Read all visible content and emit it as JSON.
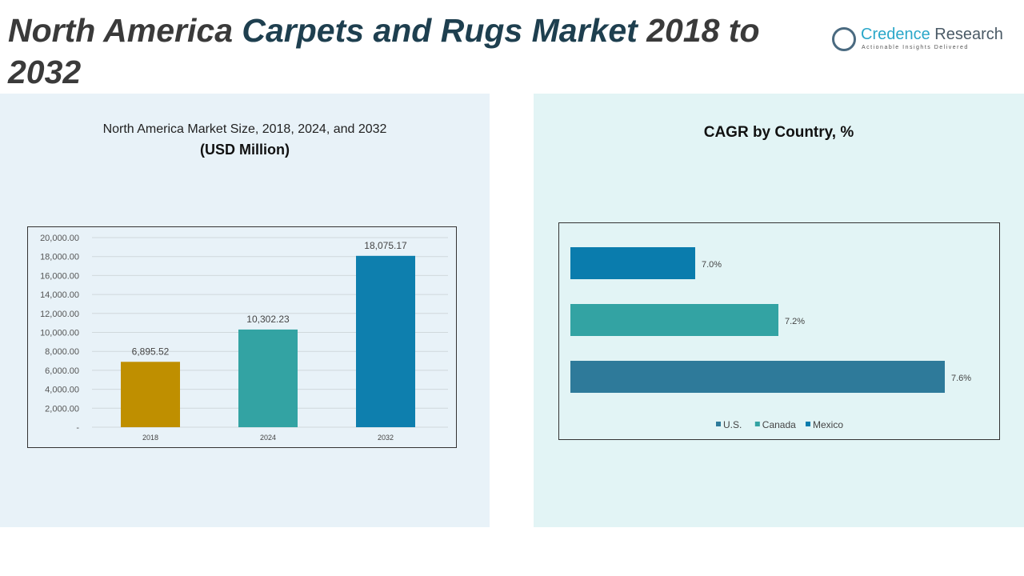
{
  "header": {
    "title_part1": "North America ",
    "title_part2": "Carpets and Rugs Market",
    "title_part3": " 2018 to 2032"
  },
  "logo": {
    "name1": "Credence",
    "name2": " Research",
    "tagline": "Actionable Insights Delivered"
  },
  "left_panel": {
    "title": "North America Market Size, 2018, 2024, and 2032",
    "subtitle": "(USD Million)"
  },
  "right_panel": {
    "title": "CAGR by Country, %"
  },
  "chart_data": [
    {
      "type": "bar",
      "title": "North America Market Size, 2018, 2024, and 2032 (USD Million)",
      "categories": [
        "2018",
        "2024",
        "2032"
      ],
      "values": [
        6895.52,
        10302.23,
        18075.17
      ],
      "labels": [
        "6,895.52",
        "10,302.23",
        "18,075.17"
      ],
      "colors": [
        "#bf8f00",
        "#33a3a3",
        "#0e7fae"
      ],
      "ylim": [
        0,
        20000
      ],
      "yticks": [
        "-",
        "2,000.00",
        "4,000.00",
        "6,000.00",
        "8,000.00",
        "10,000.00",
        "12,000.00",
        "14,000.00",
        "16,000.00",
        "18,000.00",
        "20,000.00"
      ],
      "grid": true
    },
    {
      "type": "bar",
      "orientation": "horizontal",
      "title": "CAGR by Country, %",
      "categories": [
        "Mexico",
        "Canada",
        "U.S."
      ],
      "values": [
        7.0,
        7.2,
        7.6
      ],
      "labels": [
        "7.0%",
        "7.2%",
        "7.6%"
      ],
      "colors": [
        "#0a7cad",
        "#33a3a3",
        "#2e7a9a"
      ],
      "xlim": [
        6.7,
        7.7
      ],
      "legend": [
        "U.S.",
        "Canada",
        "Mexico"
      ],
      "legend_colors": [
        "#2e7a9a",
        "#33a3a3",
        "#0a7cad"
      ],
      "legend_position": "bottom"
    }
  ]
}
